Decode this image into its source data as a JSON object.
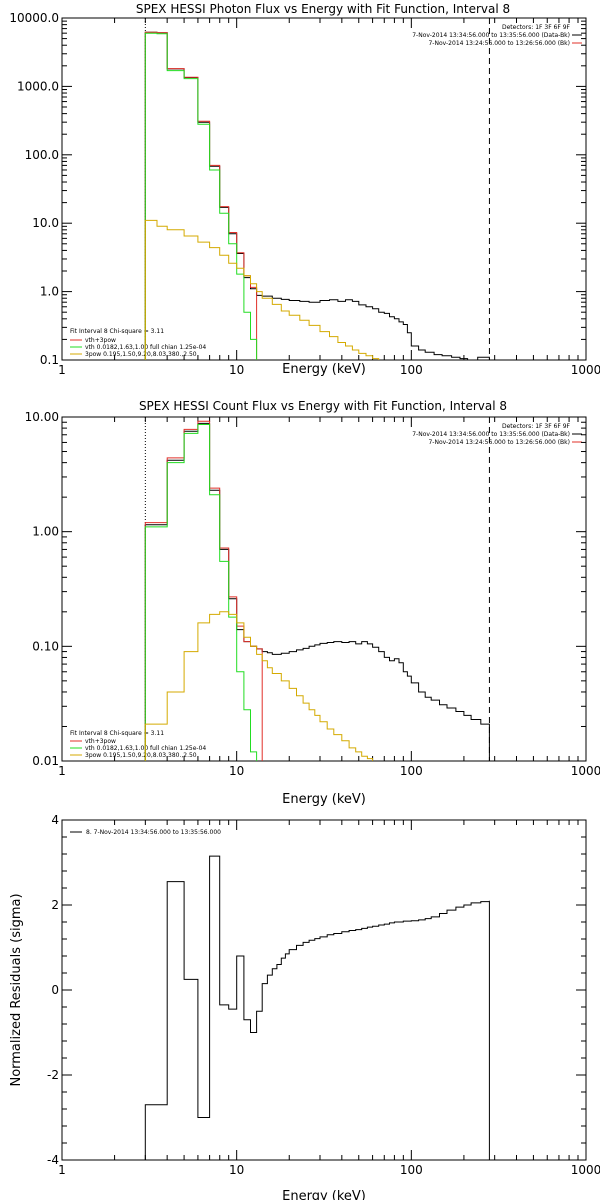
{
  "chart_data": [
    {
      "type": "line",
      "title": "SPEX HESSI Photon Flux vs Energy with Fit Function, Interval 8",
      "xlabel": "Energy (keV)",
      "ylabel": "",
      "xscale": "log",
      "yscale": "log",
      "xlim": [
        1,
        1000
      ],
      "ylim": [
        0.1,
        10000
      ],
      "xticklabels": [
        "1",
        "10",
        "100",
        "1000"
      ],
      "yticks": [
        0.1,
        1,
        10,
        100,
        1000,
        10000
      ],
      "yticklabels": [
        "0.1",
        "1.0",
        "10.0",
        "100.0",
        "1000.0",
        "10000.0"
      ],
      "info": [
        "Detectors: 1F 3F 6F 9F",
        "7-Nov-2014 13:34:56.000 to 13:35:56.000 (Data-Bk)",
        "7-Nov-2014 13:24:56.000 to 13:26:56.000 (Bk)"
      ],
      "legend": [
        "Fit Interval 8   Chi-square = 3.11",
        "vth+3pow",
        "vth 0.0182,1.63,1.00  full chian 1.25e-04",
        "3pow 0.195,1.50,9.20,8.03,380.,2.50"
      ],
      "vlines": [
        {
          "x": 3.0,
          "style": "dotted",
          "color": "#000000"
        },
        {
          "x": 280,
          "style": "dashed",
          "color": "#000000"
        }
      ],
      "series": [
        {
          "color": "#000000",
          "x": [
            3,
            3.5,
            4,
            5,
            6,
            7,
            8,
            9,
            10,
            11,
            12,
            13,
            14,
            16,
            18,
            20,
            23,
            26,
            30,
            34,
            38,
            42,
            46,
            50,
            55,
            60,
            65,
            70,
            75,
            80,
            85,
            90,
            95,
            100,
            110,
            120,
            135,
            150,
            170,
            190,
            210,
            240,
            280
          ],
          "y": [
            6200,
            6100,
            1800,
            1350,
            300,
            68,
            17,
            7,
            3.6,
            1.6,
            1.1,
            0.88,
            0.86,
            0.8,
            0.77,
            0.74,
            0.72,
            0.7,
            0.74,
            0.76,
            0.72,
            0.76,
            0.72,
            0.64,
            0.6,
            0.56,
            0.5,
            0.48,
            0.43,
            0.4,
            0.36,
            0.33,
            0.25,
            0.16,
            0.14,
            0.13,
            0.12,
            0.115,
            0.11,
            0.105,
            0.1,
            0.11,
            0.1
          ]
        },
        {
          "color": "#e0302a",
          "x": [
            3,
            3.5,
            4,
            5,
            6,
            7,
            8,
            9,
            10,
            11,
            12,
            13
          ],
          "y": [
            6200,
            6100,
            1820,
            1360,
            310,
            70,
            17.5,
            7.3,
            3.7,
            1.7,
            1.15,
            0.9
          ]
        },
        {
          "color": "#22dd22",
          "x": [
            3,
            3.5,
            4,
            5,
            6,
            7,
            8,
            9,
            10,
            11,
            12,
            13
          ],
          "y": [
            6000,
            5900,
            1700,
            1300,
            280,
            60,
            14,
            5,
            1.8,
            0.5,
            0.2,
            0.1
          ]
        },
        {
          "color": "#d4aa00",
          "x": [
            3,
            3.5,
            4,
            5,
            6,
            7,
            8,
            9,
            10,
            11,
            12,
            13,
            14,
            16,
            18,
            20,
            23,
            26,
            30,
            34,
            38,
            42,
            46,
            50,
            55,
            60,
            65
          ],
          "y": [
            11,
            9,
            8,
            6.5,
            5.3,
            4.4,
            3.4,
            2.6,
            2.2,
            1.7,
            1.3,
            1.0,
            0.8,
            0.65,
            0.52,
            0.45,
            0.38,
            0.32,
            0.26,
            0.22,
            0.18,
            0.16,
            0.14,
            0.125,
            0.115,
            0.105,
            0.1
          ]
        }
      ]
    },
    {
      "type": "line",
      "title": "SPEX HESSI Count Flux vs Energy with Fit Function, Interval 8",
      "xlabel": "Energy (keV)",
      "ylabel": "",
      "xscale": "log",
      "yscale": "log",
      "xlim": [
        1,
        1000
      ],
      "ylim": [
        0.01,
        10
      ],
      "xticklabels": [
        "1",
        "10",
        "100",
        "1000"
      ],
      "yticks": [
        0.01,
        0.1,
        1,
        10
      ],
      "yticklabels": [
        "0.01",
        "0.10",
        "1.00",
        "10.00"
      ],
      "info": [
        "Detectors: 1F 3F 6F 9F",
        "7-Nov-2014 13:34:56.000 to 13:35:56.000 (Data-Bk)",
        "7-Nov-2014 13:24:56.000 to 13:26:56.000 (Bk)"
      ],
      "legend": [
        "Fit Interval 8   Chi-square = 3.11",
        "vth+3pow",
        "vth 0.0182,1.63,1.00  full chian 1.25e-04",
        "3pow 0.195,1.50,9.20,8.03,380.,2.50"
      ],
      "vlines": [
        {
          "x": 3.0,
          "style": "dotted",
          "color": "#000000"
        },
        {
          "x": 280,
          "style": "dashed",
          "color": "#000000"
        }
      ],
      "series": [
        {
          "color": "#000000",
          "x": [
            3,
            4,
            5,
            6,
            7,
            8,
            9,
            10,
            11,
            12,
            13,
            14,
            15,
            16,
            18,
            20,
            22,
            24,
            26,
            28,
            30,
            33,
            36,
            40,
            44,
            48,
            52,
            56,
            60,
            65,
            70,
            75,
            80,
            85,
            90,
            95,
            100,
            110,
            120,
            130,
            145,
            160,
            180,
            200,
            220,
            250,
            280
          ],
          "y": [
            1.15,
            4.2,
            7.5,
            8.8,
            2.3,
            0.7,
            0.26,
            0.14,
            0.11,
            0.1,
            0.095,
            0.09,
            0.088,
            0.085,
            0.087,
            0.09,
            0.093,
            0.096,
            0.1,
            0.103,
            0.106,
            0.108,
            0.11,
            0.108,
            0.11,
            0.105,
            0.11,
            0.105,
            0.098,
            0.09,
            0.08,
            0.075,
            0.078,
            0.072,
            0.06,
            0.055,
            0.048,
            0.04,
            0.036,
            0.034,
            0.031,
            0.029,
            0.027,
            0.025,
            0.023,
            0.021,
            0.02
          ]
        },
        {
          "color": "#e0302a",
          "x": [
            3,
            4,
            5,
            6,
            7,
            8,
            9,
            10,
            11,
            12,
            13,
            14
          ],
          "y": [
            1.2,
            4.4,
            7.8,
            9.2,
            2.4,
            0.72,
            0.27,
            0.15,
            0.11,
            0.1,
            0.095,
            0.09
          ]
        },
        {
          "color": "#22dd22",
          "x": [
            3,
            4,
            5,
            6,
            7,
            8,
            9,
            10,
            11,
            12,
            13
          ],
          "y": [
            1.1,
            4.0,
            7.2,
            8.6,
            2.1,
            0.55,
            0.18,
            0.06,
            0.028,
            0.012,
            0.01
          ]
        },
        {
          "color": "#d4aa00",
          "x": [
            3,
            4,
            5,
            6,
            7,
            8,
            9,
            10,
            11,
            12,
            13,
            14,
            15,
            16,
            18,
            20,
            22,
            24,
            26,
            28,
            30,
            33,
            36,
            40,
            44,
            48,
            52,
            56,
            60
          ],
          "y": [
            0.021,
            0.04,
            0.09,
            0.16,
            0.19,
            0.2,
            0.19,
            0.16,
            0.12,
            0.1,
            0.085,
            0.075,
            0.065,
            0.058,
            0.05,
            0.043,
            0.037,
            0.032,
            0.028,
            0.025,
            0.022,
            0.019,
            0.017,
            0.015,
            0.013,
            0.012,
            0.011,
            0.0105,
            0.01
          ]
        }
      ]
    },
    {
      "type": "line",
      "title": "",
      "xlabel": "Energy (keV)",
      "ylabel": "Normalized Residuals (sigma)",
      "xscale": "log",
      "yscale": "linear",
      "xlim": [
        1,
        1000
      ],
      "ylim": [
        -4,
        4
      ],
      "xticklabels": [
        "1",
        "10",
        "100",
        "1000"
      ],
      "yticks": [
        -4,
        -2,
        0,
        2,
        4
      ],
      "yticklabels": [
        "-4",
        "-2",
        "0",
        "2",
        "4"
      ],
      "legend": [
        "8.  7-Nov-2014 13:34:56.000 to 13:35:56.000"
      ],
      "vlines": [],
      "series": [
        {
          "color": "#000000",
          "x": [
            3,
            4,
            5,
            6,
            7,
            8,
            9,
            10,
            11,
            12,
            13,
            14,
            15,
            16,
            17,
            18,
            19,
            20,
            22,
            24,
            26,
            28,
            30,
            33,
            36,
            40,
            44,
            48,
            52,
            56,
            60,
            65,
            70,
            75,
            80,
            90,
            100,
            110,
            120,
            130,
            145,
            160,
            180,
            200,
            220,
            250,
            280
          ],
          "y": [
            -2.7,
            2.55,
            0.25,
            -3.0,
            3.15,
            -0.35,
            -0.45,
            0.8,
            -0.7,
            -1.0,
            -0.5,
            0.15,
            0.35,
            0.5,
            0.6,
            0.75,
            0.85,
            0.95,
            1.05,
            1.12,
            1.17,
            1.21,
            1.25,
            1.3,
            1.33,
            1.37,
            1.4,
            1.42,
            1.45,
            1.48,
            1.5,
            1.53,
            1.55,
            1.58,
            1.6,
            1.62,
            1.63,
            1.65,
            1.68,
            1.72,
            1.8,
            1.88,
            1.95,
            2.0,
            2.05,
            2.08,
            2.1
          ]
        }
      ]
    }
  ]
}
